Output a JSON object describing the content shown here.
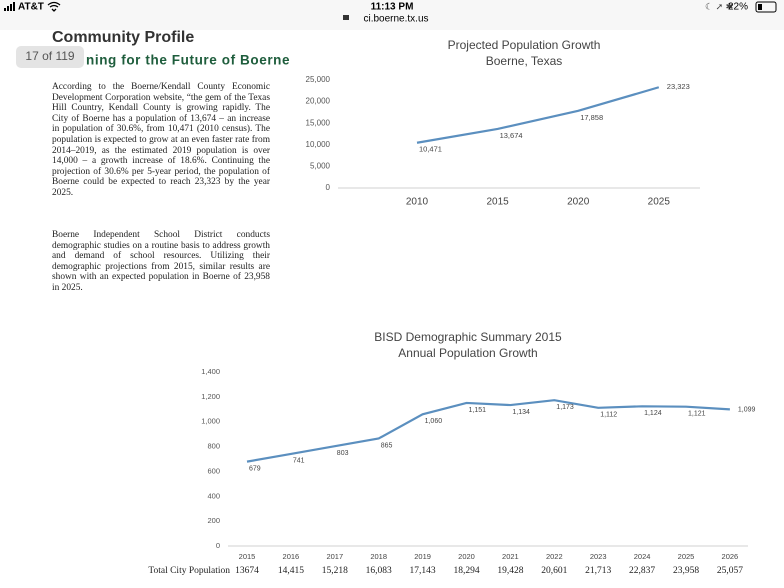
{
  "status_bar": {
    "carrier": "AT&T",
    "time": "11:13 PM",
    "url": "ci.boerne.tx.us",
    "battery": "22%"
  },
  "document": {
    "title": "Community Profile",
    "page_indicator": "17 of 119",
    "heading": "ning for the Future of Boerne",
    "paragraphs": [
      "According to the Boerne/Kendall County Economic Development Corporation website, “the gem of the Texas Hill Country, Kendall County is growing rapidly. The City of Boerne has a population of 13,674 – an increase in population of 30.6%, from 10,471 (2010 census). The population is expected to grow at an even faster rate from 2014–2019, as the estimated 2019 population is over 14,000 – a growth increase of 18.6%. Continuing the projection of 30.6% per 5-year period, the population of Boerne could be expected to reach 23,323 by the year 2025.",
      "Boerne Independent School District conducts demographic studies on a routine basis to address growth and demand of school resources. Utilizing their demographic projections from 2015, similar results are shown with an expected population in Boerne of 23,958 in 2025."
    ]
  },
  "chart_data": [
    {
      "type": "line",
      "title": "Projected Population Growth",
      "subtitle": "Boerne, Texas",
      "categories": [
        "2010",
        "2015",
        "2020",
        "2025"
      ],
      "values": [
        10471,
        13674,
        17858,
        23323
      ],
      "value_labels": [
        "10,471",
        "13,674",
        "17,858",
        "23,323"
      ],
      "color": "#5b8fbf",
      "ylim": [
        0,
        25000
      ],
      "yticks": [
        0,
        {
          "value": 5000,
          "label": "5,000"
        },
        {
          "value": 10000,
          "label": "10,000"
        },
        {
          "value": 15000,
          "label": "15,000"
        },
        {
          "value": 20000,
          "label": "20,000"
        },
        {
          "value": 25000,
          "label": "25,000"
        }
      ],
      "grid": false
    },
    {
      "type": "line",
      "title": "BISD Demographic Summary 2015",
      "subtitle": "Annual Population Growth",
      "categories": [
        "2015",
        "2016",
        "2017",
        "2018",
        "2019",
        "2020",
        "2021",
        "2022",
        "2023",
        "2024",
        "2025",
        "2026"
      ],
      "values": [
        679,
        741,
        803,
        865,
        1060,
        1151,
        1134,
        1173,
        1112,
        1124,
        1121,
        1099
      ],
      "value_labels": [
        "679",
        "741",
        "803",
        "865",
        "1,060",
        "1,151",
        "1,134",
        "1,173",
        "1,112",
        "1,124",
        "1,121",
        "1,099"
      ],
      "color": "#5b8fbf",
      "ylim": [
        0,
        1400
      ],
      "yticks": [
        0,
        200,
        400,
        600,
        800,
        {
          "value": 1000,
          "label": "1,000"
        },
        {
          "value": 1200,
          "label": "1,200"
        },
        {
          "value": 1400,
          "label": "1,400"
        }
      ],
      "grid": false
    }
  ],
  "population_table": {
    "label": "Total City Population",
    "values": [
      "13674",
      "14,415",
      "15,218",
      "16,083",
      "17,143",
      "18,294",
      "19,428",
      "20,601",
      "21,713",
      "22,837",
      "23,958",
      "25,057"
    ]
  }
}
